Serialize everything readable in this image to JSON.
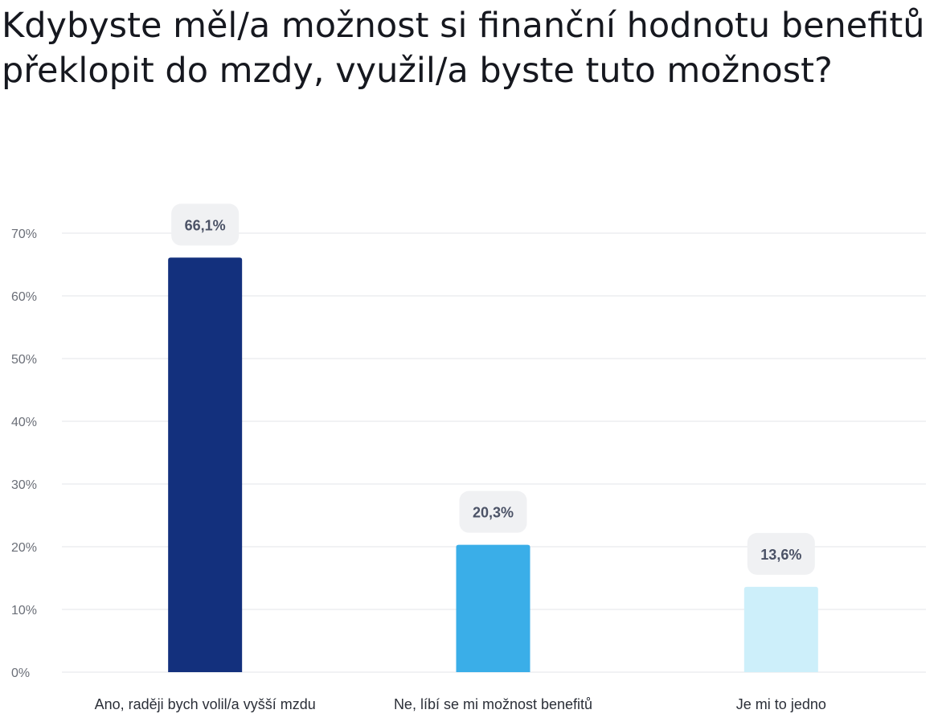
{
  "chart_data": {
    "type": "bar",
    "title": "Kdybyste měl/a možnost si finanční hodnotu benefitů překlopit do mzdy, využil/a byste tuto možnost?",
    "categories": [
      "Ano, raději bych volil/a vyšší mzdu",
      "Ne, líbí se mi možnost benefitů",
      "Je mi to jedno"
    ],
    "values": [
      66.1,
      20.3,
      13.6
    ],
    "data_labels": [
      "66,1%",
      "20,3%",
      "13,6%"
    ],
    "bar_colors": [
      "#13307d",
      "#3aaee8",
      "#cdeffa"
    ],
    "yticks": [
      0,
      10,
      20,
      30,
      40,
      50,
      60,
      70
    ],
    "ytick_labels": [
      "0%",
      "10%",
      "20%",
      "30%",
      "40%",
      "50%",
      "60%",
      "70%"
    ],
    "ylim": [
      0,
      70
    ],
    "xlabel": "",
    "ylabel": "",
    "grid": true,
    "legend": "none"
  }
}
